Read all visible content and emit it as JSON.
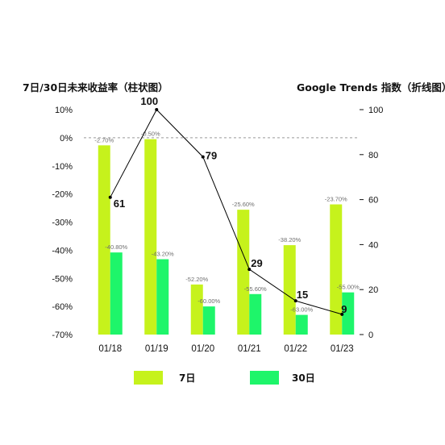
{
  "chart_data": {
    "type": "bar",
    "left_axis_title": "7日/30日未来收益率（柱状图）",
    "right_axis_title": "Google Trends 指数（折线图）",
    "categories": [
      "01/18",
      "01/19",
      "01/20",
      "01/21",
      "01/22",
      "01/23"
    ],
    "left_ylim": [
      -70,
      10
    ],
    "left_ticks": [
      "10%",
      "0%",
      "-10%",
      "-20%",
      "-30%",
      "-40%",
      "-50%",
      "-60%",
      "-70%"
    ],
    "left_tick_values": [
      10,
      0,
      -10,
      -20,
      -30,
      -40,
      -50,
      -60,
      -70
    ],
    "right_ylim": [
      0,
      100
    ],
    "right_ticks": [
      "100",
      "80",
      "60",
      "40",
      "20",
      "0"
    ],
    "right_tick_values": [
      100,
      80,
      60,
      40,
      20,
      0
    ],
    "series": [
      {
        "name": "7日",
        "type": "bar",
        "color": "#c6f21c",
        "values": [
          -2.7,
          -0.5,
          -52.2,
          -25.6,
          -38.2,
          -23.7
        ],
        "labels": [
          "-2.70%",
          "-0.50%",
          "-52.20%",
          "-25.60%",
          "-38.20%",
          "-23.70%"
        ]
      },
      {
        "name": "30日",
        "type": "bar",
        "color": "#1ef56a",
        "values": [
          -40.8,
          -43.2,
          -60.0,
          -55.6,
          -63.0,
          -55.0
        ],
        "labels": [
          "-40.80%",
          "-43.20%",
          "-60.00%",
          "-55.60%",
          "-63.00%",
          "-55.00%"
        ]
      },
      {
        "name": "Google Trends",
        "type": "line",
        "axis": "right",
        "color": "#000000",
        "values": [
          61,
          100,
          79,
          29,
          15,
          9
        ],
        "labels": [
          "61",
          "100",
          "79",
          "29",
          "15",
          "9"
        ]
      }
    ],
    "zero_line": "dashed",
    "grid": false,
    "legend_position": "bottom"
  }
}
